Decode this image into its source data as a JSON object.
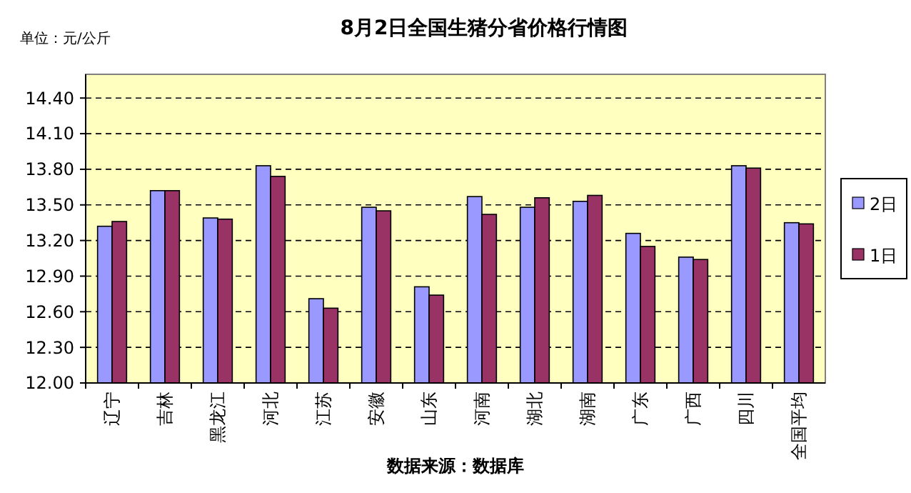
{
  "chart_data": {
    "type": "bar",
    "title": "8月2日全国生猪分省价格行情图",
    "annotations": [
      "单位：元/公斤",
      "数据来源：数据库"
    ],
    "categories": [
      "辽宁",
      "吉林",
      "黑龙江",
      "河北",
      "江苏",
      "安徽",
      "山东",
      "河南",
      "湖北",
      "湖南",
      "广东",
      "广西",
      "四川",
      "全国平均"
    ],
    "series": [
      {
        "name": "2日",
        "color": "#9999ff",
        "values": [
          13.32,
          13.62,
          13.39,
          13.83,
          12.71,
          13.48,
          12.81,
          13.57,
          13.48,
          13.53,
          13.26,
          13.06,
          13.83,
          13.35
        ]
      },
      {
        "name": "1日",
        "color": "#993366",
        "values": [
          13.36,
          13.62,
          13.38,
          13.74,
          12.63,
          13.45,
          12.74,
          13.42,
          13.56,
          13.58,
          13.15,
          13.04,
          13.81,
          13.34
        ]
      }
    ],
    "ylim": [
      12,
      14.6
    ],
    "yticks": [
      {
        "value": 12,
        "label": "12.00"
      },
      {
        "value": 12.3,
        "label": "12.30"
      },
      {
        "value": 12.6,
        "label": "12.60"
      },
      {
        "value": 12.9,
        "label": "12.90"
      },
      {
        "value": 13.2,
        "label": "13.20"
      },
      {
        "value": 13.5,
        "label": "13.50"
      },
      {
        "value": 13.8,
        "label": "13.80"
      },
      {
        "value": 14.1,
        "label": "14.10"
      },
      {
        "value": 14.4,
        "label": "14.40"
      }
    ],
    "grid": "y",
    "legend": "right"
  }
}
